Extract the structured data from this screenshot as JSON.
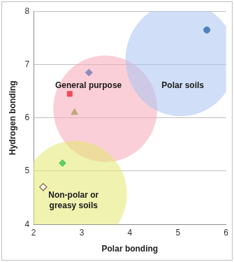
{
  "chart_data": {
    "type": "scatter",
    "x_label": "Polar bonding",
    "y_label": "Hydrogen bonding",
    "xlim": [
      2,
      6
    ],
    "xticks": [
      2,
      3,
      4,
      5,
      6
    ],
    "ylim": [
      4,
      8
    ],
    "yticks": [
      4,
      5,
      6,
      7,
      8
    ],
    "grid": "y",
    "series": [
      {
        "color": "#4f81bd",
        "marker": "circle",
        "x": [
          5.6
        ],
        "values": [
          7.65
        ]
      },
      {
        "color": "#8f8cbf",
        "marker": "diamond",
        "x": [
          3.15
        ],
        "values": [
          6.85
        ]
      },
      {
        "color": "#f04a5a",
        "marker": "square",
        "x": [
          2.75
        ],
        "values": [
          6.45
        ]
      },
      {
        "color": "#bba77a",
        "marker": "triangle",
        "x": [
          2.85
        ],
        "values": [
          6.1
        ]
      },
      {
        "color": "#5fcf5f",
        "marker": "diamond",
        "x": [
          2.6
        ],
        "values": [
          5.15
        ]
      },
      {
        "color": "#8c7b52",
        "marker": "open_diamond",
        "x": [
          2.2
        ],
        "values": [
          4.7
        ]
      }
    ],
    "annotations": [
      {
        "text": [
          "General purpose"
        ],
        "color": "#f7a8b8",
        "x": 3.49,
        "y": 6.17,
        "rx": 1.08,
        "ry": 1.0,
        "label_x": 3.14,
        "label_y": 6.6
      },
      {
        "text": [
          "Polar soils"
        ],
        "color": "#a9c4f0",
        "x": 5.06,
        "y": 7.1,
        "rx": 1.15,
        "ry": 1.07,
        "label_x": 5.1,
        "label_y": 6.6
      },
      {
        "text": [
          "Non-polar or",
          "greasy soils"
        ],
        "color": "#e4e870",
        "x": 2.86,
        "y": 4.57,
        "rx": 1.08,
        "ry": 1.0,
        "label_x": 2.83,
        "label_y": 4.55
      }
    ]
  }
}
